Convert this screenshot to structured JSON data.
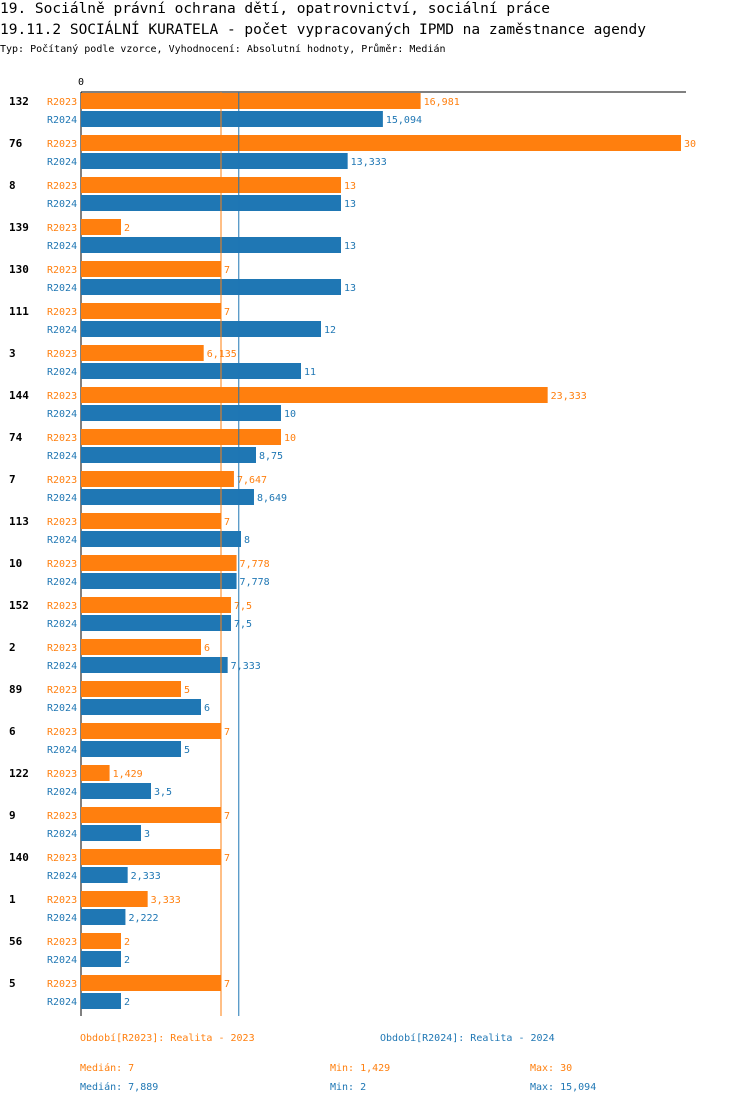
{
  "header": {
    "title_line1": "19. Sociálně právní ochrana dětí, opatrovnictví, sociální práce",
    "title_line2": "19.11.2 SOCIÁLNÍ KURATELA - počet vypracovaných IPMD na zaměstnance agendy",
    "subtitle": "Typ: Počítaný podle vzorce, Vyhodnocení: Absolutní hodnoty, Průměr: Medián"
  },
  "chart_data": {
    "type": "bar",
    "orientation": "horizontal",
    "x_axis_zero_label": "0",
    "xlim": [
      0,
      30
    ],
    "colors": {
      "R2023": "#ff7f0e",
      "R2024": "#1f77b4"
    },
    "categories": [
      "132",
      "76",
      "8",
      "139",
      "130",
      "111",
      "3",
      "144",
      "74",
      "7",
      "113",
      "10",
      "152",
      "2",
      "89",
      "6",
      "122",
      "9",
      "140",
      "1",
      "56",
      "5"
    ],
    "series": [
      {
        "name": "R2023",
        "values": [
          16.981,
          30,
          13,
          2,
          7,
          7,
          6.135,
          23.333,
          10,
          7.647,
          7,
          7.778,
          7.5,
          6,
          5,
          7,
          1.429,
          7,
          7,
          3.333,
          2,
          7
        ],
        "labels": [
          "16,981",
          "30",
          "13",
          "2",
          "7",
          "7",
          "6,135",
          "23,333",
          "10",
          "7,647",
          "7",
          "7,778",
          "7,5",
          "6",
          "5",
          "7",
          "1,429",
          "7",
          "7",
          "3,333",
          "2",
          "7"
        ]
      },
      {
        "name": "R2024",
        "values": [
          15.094,
          13.333,
          13,
          13,
          13,
          12,
          11,
          10,
          8.75,
          8.649,
          8,
          7.778,
          7.5,
          7.333,
          6,
          5,
          3.5,
          3,
          2.333,
          2.222,
          2,
          2
        ],
        "labels": [
          "15,094",
          "13,333",
          "13",
          "13",
          "13",
          "12",
          "11",
          "10",
          "8,75",
          "8,649",
          "8",
          "7,778",
          "7,5",
          "7,333",
          "6",
          "5",
          "3,5",
          "3",
          "2,333",
          "2,222",
          "2",
          "2"
        ]
      }
    ],
    "reference_lines": [
      {
        "series": "R2023",
        "type": "median",
        "value": 7
      },
      {
        "series": "R2024",
        "type": "median",
        "value": 7.889
      }
    ]
  },
  "legend": {
    "r2023_label": "Období[R2023]: Realita - 2023",
    "r2024_label": "Období[R2024]: Realita - 2024"
  },
  "stats": {
    "r2023": {
      "median": "Medián: 7",
      "min": "Min: 1,429",
      "max": "Max: 30"
    },
    "r2024": {
      "median": "Medián: 7,889",
      "min": "Min: 2",
      "max": "Max: 15,094"
    }
  }
}
